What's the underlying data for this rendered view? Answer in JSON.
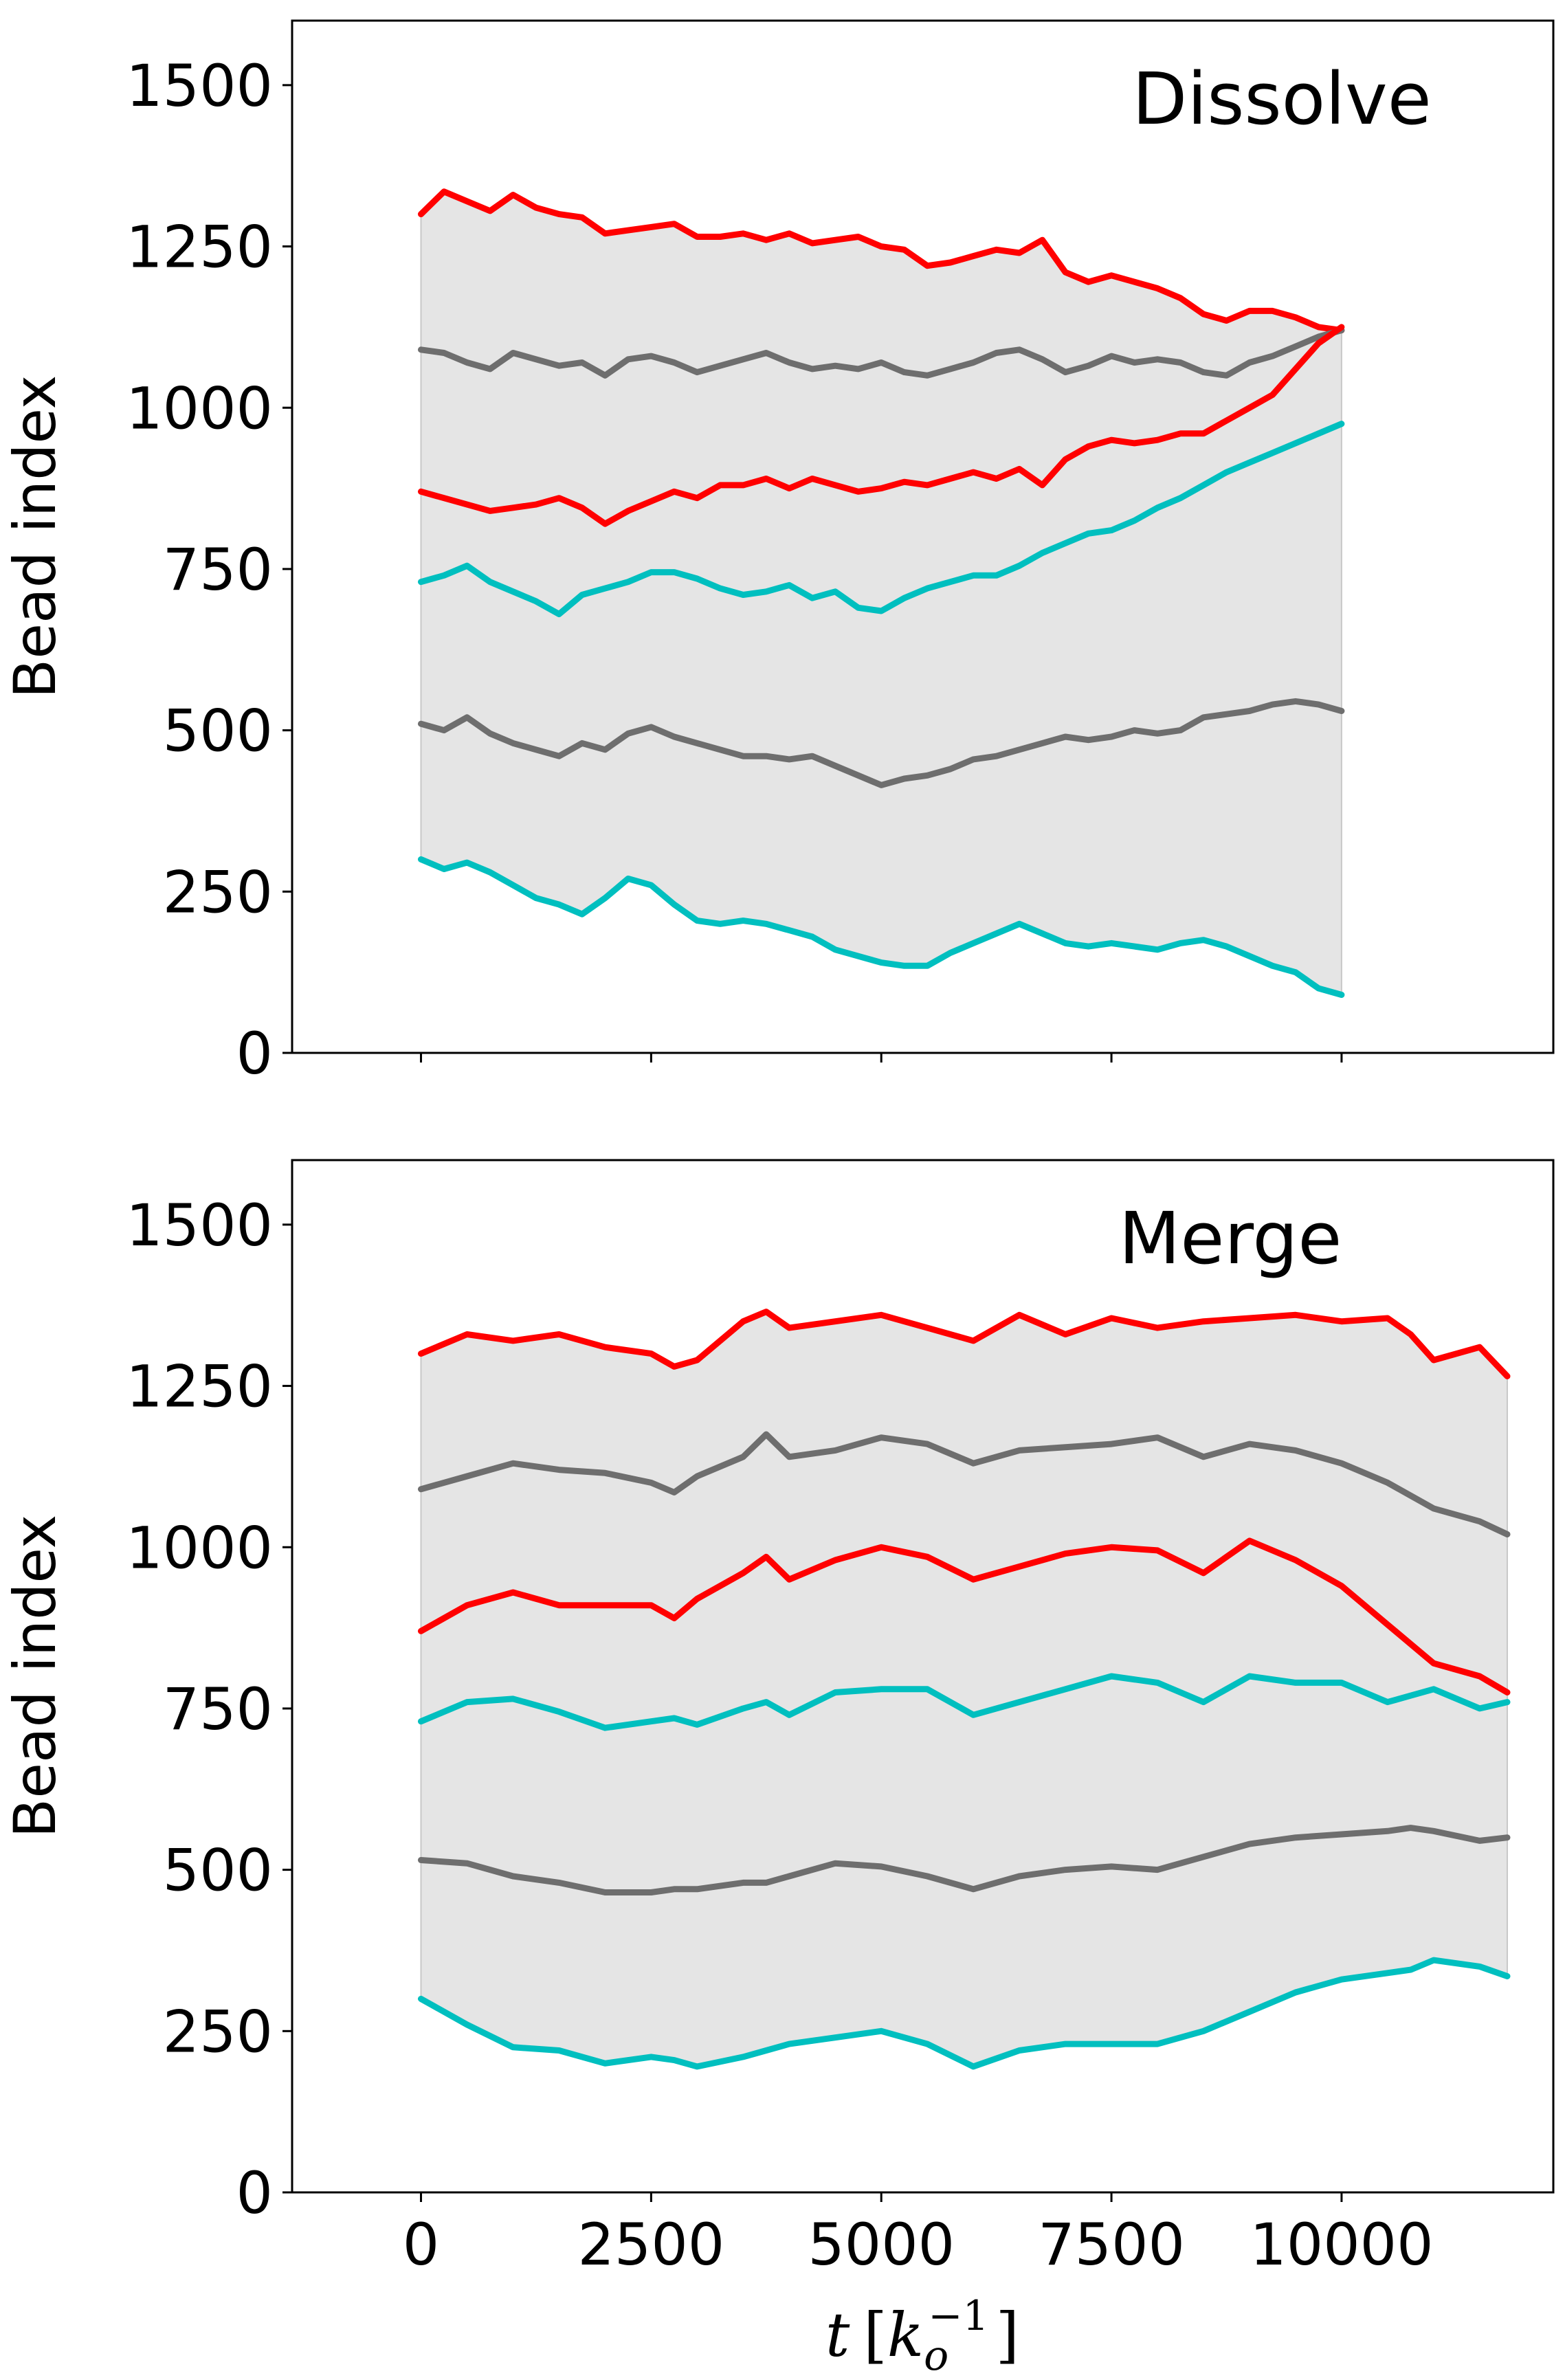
{
  "colors": {
    "red": "#ff0000",
    "gray": "#6e6e6e",
    "cyan": "#00bfbf",
    "fill": "#e5e5e5"
  },
  "chart_data": [
    {
      "type": "line",
      "title": "Dissolve",
      "xlabel": "",
      "ylabel": "Bead index",
      "xlim": [
        -1400,
        12300
      ],
      "ylim": [
        0,
        1600
      ],
      "xticks": [
        0,
        2500,
        5000,
        7500,
        10000
      ],
      "xtick_labels": [
        "",
        "",
        "",
        "",
        ""
      ],
      "yticks": [
        0,
        250,
        500,
        750,
        1000,
        1250,
        1500
      ],
      "ytick_labels": [
        "0",
        "250",
        "500",
        "750",
        "1000",
        "1250",
        "1500"
      ],
      "shaded_region": "between lowest cyan and highest red curve",
      "series": [
        {
          "color": "red",
          "x": [
            0,
            250,
            500,
            750,
            1000,
            1250,
            1500,
            1750,
            2000,
            2250,
            2500,
            2750,
            3000,
            3250,
            3500,
            3750,
            4000,
            4250,
            4500,
            4750,
            5000,
            5250,
            5500,
            5750,
            6000,
            6250,
            6500,
            6750,
            7000,
            7250,
            7500,
            7750,
            8000,
            8250,
            8500,
            8750,
            9000,
            9250,
            9500,
            9750,
            10000
          ],
          "values": [
            1300,
            1335,
            1320,
            1305,
            1330,
            1310,
            1300,
            1295,
            1270,
            1275,
            1280,
            1285,
            1265,
            1265,
            1270,
            1260,
            1270,
            1255,
            1260,
            1265,
            1250,
            1245,
            1220,
            1225,
            1235,
            1245,
            1240,
            1260,
            1210,
            1195,
            1205,
            1195,
            1185,
            1170,
            1145,
            1135,
            1150,
            1150,
            1140,
            1125,
            1120
          ]
        },
        {
          "color": "gray",
          "x": [
            0,
            250,
            500,
            750,
            1000,
            1250,
            1500,
            1750,
            2000,
            2250,
            2500,
            2750,
            3000,
            3250,
            3500,
            3750,
            4000,
            4250,
            4500,
            4750,
            5000,
            5250,
            5500,
            5750,
            6000,
            6250,
            6500,
            6750,
            7000,
            7250,
            7500,
            7750,
            8000,
            8250,
            8500,
            8750,
            9000,
            9250,
            9500,
            9750,
            10000
          ],
          "values": [
            1090,
            1085,
            1070,
            1060,
            1085,
            1075,
            1065,
            1070,
            1050,
            1075,
            1080,
            1070,
            1055,
            1065,
            1075,
            1085,
            1070,
            1060,
            1065,
            1060,
            1070,
            1055,
            1050,
            1060,
            1070,
            1085,
            1090,
            1075,
            1055,
            1065,
            1080,
            1070,
            1075,
            1070,
            1055,
            1050,
            1070,
            1080,
            1095,
            1110,
            1120
          ]
        },
        {
          "color": "red",
          "x": [
            0,
            250,
            500,
            750,
            1000,
            1250,
            1500,
            1750,
            2000,
            2250,
            2500,
            2750,
            3000,
            3250,
            3500,
            3750,
            4000,
            4250,
            4500,
            4750,
            5000,
            5250,
            5500,
            5750,
            6000,
            6250,
            6500,
            6750,
            7000,
            7250,
            7500,
            7750,
            8000,
            8250,
            8500,
            8750,
            9000,
            9250,
            9500,
            9750,
            10000
          ],
          "values": [
            870,
            860,
            850,
            840,
            845,
            850,
            860,
            845,
            820,
            840,
            855,
            870,
            860,
            880,
            880,
            890,
            875,
            890,
            880,
            870,
            875,
            885,
            880,
            890,
            900,
            890,
            905,
            880,
            920,
            940,
            950,
            945,
            950,
            960,
            960,
            980,
            1000,
            1020,
            1060,
            1100,
            1125
          ]
        },
        {
          "color": "cyan",
          "x": [
            0,
            250,
            500,
            750,
            1000,
            1250,
            1500,
            1750,
            2000,
            2250,
            2500,
            2750,
            3000,
            3250,
            3500,
            3750,
            4000,
            4250,
            4500,
            4750,
            5000,
            5250,
            5500,
            5750,
            6000,
            6250,
            6500,
            6750,
            7000,
            7250,
            7500,
            7750,
            8000,
            8250,
            8500,
            8750,
            9000,
            9250,
            9500,
            9750,
            10000
          ],
          "values": [
            730,
            740,
            755,
            730,
            715,
            700,
            680,
            710,
            720,
            730,
            745,
            745,
            735,
            720,
            710,
            715,
            725,
            705,
            715,
            690,
            685,
            705,
            720,
            730,
            740,
            740,
            755,
            775,
            790,
            805,
            810,
            825,
            845,
            860,
            880,
            900,
            915,
            930,
            945,
            960,
            975
          ]
        },
        {
          "color": "gray",
          "x": [
            0,
            250,
            500,
            750,
            1000,
            1250,
            1500,
            1750,
            2000,
            2250,
            2500,
            2750,
            3000,
            3250,
            3500,
            3750,
            4000,
            4250,
            4500,
            4750,
            5000,
            5250,
            5500,
            5750,
            6000,
            6250,
            6500,
            6750,
            7000,
            7250,
            7500,
            7750,
            8000,
            8250,
            8500,
            8750,
            9000,
            9250,
            9500,
            9750,
            10000
          ],
          "values": [
            510,
            500,
            520,
            495,
            480,
            470,
            460,
            480,
            470,
            495,
            505,
            490,
            480,
            470,
            460,
            460,
            455,
            460,
            445,
            430,
            415,
            425,
            430,
            440,
            455,
            460,
            470,
            480,
            490,
            485,
            490,
            500,
            495,
            500,
            520,
            525,
            530,
            540,
            545,
            540,
            530
          ]
        },
        {
          "color": "cyan",
          "x": [
            0,
            250,
            500,
            750,
            1000,
            1250,
            1500,
            1750,
            2000,
            2250,
            2500,
            2750,
            3000,
            3250,
            3500,
            3750,
            4000,
            4250,
            4500,
            4750,
            5000,
            5250,
            5500,
            5750,
            6000,
            6250,
            6500,
            6750,
            7000,
            7250,
            7500,
            7750,
            8000,
            8250,
            8500,
            8750,
            9000,
            9250,
            9500,
            9750,
            10000
          ],
          "values": [
            300,
            285,
            295,
            280,
            260,
            240,
            230,
            215,
            240,
            270,
            260,
            230,
            205,
            200,
            205,
            200,
            190,
            180,
            160,
            150,
            140,
            135,
            135,
            155,
            170,
            185,
            200,
            185,
            170,
            165,
            170,
            165,
            160,
            170,
            175,
            165,
            150,
            135,
            125,
            100,
            90
          ]
        }
      ]
    },
    {
      "type": "line",
      "title": "Merge",
      "xlabel": "t [k_o^-1]",
      "ylabel": "Bead index",
      "xlim": [
        -1400,
        12300
      ],
      "ylim": [
        0,
        1600
      ],
      "xticks": [
        0,
        2500,
        5000,
        7500,
        10000
      ],
      "xtick_labels": [
        "0",
        "2500",
        "5000",
        "7500",
        "10000"
      ],
      "yticks": [
        0,
        250,
        500,
        750,
        1000,
        1250,
        1500
      ],
      "ytick_labels": [
        "0",
        "250",
        "500",
        "750",
        "1000",
        "1250",
        "1500"
      ],
      "shaded_region": "between lowest cyan and highest red curve",
      "series": [
        {
          "color": "red",
          "x": [
            0,
            500,
            1000,
            1500,
            2000,
            2500,
            2750,
            3000,
            3500,
            3750,
            4000,
            4500,
            5000,
            5500,
            6000,
            6500,
            7000,
            7500,
            8000,
            8500,
            9000,
            9500,
            10000,
            10500,
            10750,
            11000,
            11500,
            11800
          ],
          "values": [
            1300,
            1330,
            1320,
            1330,
            1310,
            1300,
            1280,
            1290,
            1350,
            1365,
            1340,
            1350,
            1360,
            1340,
            1320,
            1360,
            1330,
            1355,
            1340,
            1350,
            1355,
            1360,
            1350,
            1355,
            1330,
            1290,
            1310,
            1265
          ]
        },
        {
          "color": "gray",
          "x": [
            0,
            500,
            1000,
            1500,
            2000,
            2500,
            2750,
            3000,
            3500,
            3750,
            4000,
            4500,
            5000,
            5500,
            6000,
            6500,
            7000,
            7500,
            8000,
            8500,
            9000,
            9500,
            10000,
            10500,
            10750,
            11000,
            11500,
            11800
          ],
          "values": [
            1090,
            1110,
            1130,
            1120,
            1115,
            1100,
            1085,
            1110,
            1140,
            1175,
            1140,
            1150,
            1170,
            1160,
            1130,
            1150,
            1155,
            1160,
            1170,
            1140,
            1160,
            1150,
            1130,
            1100,
            1080,
            1060,
            1040,
            1020
          ]
        },
        {
          "color": "red",
          "x": [
            0,
            500,
            1000,
            1500,
            2000,
            2500,
            2750,
            3000,
            3500,
            3750,
            4000,
            4500,
            5000,
            5500,
            6000,
            6500,
            7000,
            7500,
            8000,
            8500,
            9000,
            9500,
            10000,
            10500,
            10750,
            11000,
            11500,
            11800
          ],
          "values": [
            870,
            910,
            930,
            910,
            910,
            910,
            890,
            920,
            960,
            985,
            950,
            980,
            1000,
            985,
            950,
            970,
            990,
            1000,
            995,
            960,
            1010,
            980,
            940,
            880,
            850,
            820,
            800,
            775
          ]
        },
        {
          "color": "cyan",
          "x": [
            0,
            500,
            1000,
            1500,
            2000,
            2500,
            2750,
            3000,
            3500,
            3750,
            4000,
            4500,
            5000,
            5500,
            6000,
            6500,
            7000,
            7500,
            8000,
            8500,
            9000,
            9500,
            10000,
            10500,
            10750,
            11000,
            11500,
            11800
          ],
          "values": [
            730,
            760,
            765,
            745,
            720,
            730,
            735,
            725,
            750,
            760,
            740,
            775,
            780,
            780,
            740,
            760,
            780,
            800,
            790,
            760,
            800,
            790,
            790,
            760,
            770,
            780,
            750,
            760
          ]
        },
        {
          "color": "gray",
          "x": [
            0,
            500,
            1000,
            1500,
            2000,
            2500,
            2750,
            3000,
            3500,
            3750,
            4000,
            4500,
            5000,
            5500,
            6000,
            6500,
            7000,
            7500,
            8000,
            8500,
            9000,
            9500,
            10000,
            10500,
            10750,
            11000,
            11500,
            11800
          ],
          "values": [
            515,
            510,
            490,
            480,
            465,
            465,
            470,
            470,
            480,
            480,
            490,
            510,
            505,
            490,
            470,
            490,
            500,
            505,
            500,
            520,
            540,
            550,
            555,
            560,
            565,
            560,
            545,
            550
          ]
        },
        {
          "color": "cyan",
          "x": [
            0,
            500,
            1000,
            1500,
            2000,
            2500,
            2750,
            3000,
            3500,
            3750,
            4000,
            4500,
            5000,
            5500,
            6000,
            6500,
            7000,
            7500,
            8000,
            8500,
            9000,
            9500,
            10000,
            10500,
            10750,
            11000,
            11500,
            11800
          ],
          "values": [
            300,
            260,
            225,
            220,
            200,
            210,
            205,
            195,
            210,
            220,
            230,
            240,
            250,
            230,
            195,
            220,
            230,
            230,
            230,
            250,
            280,
            310,
            330,
            340,
            345,
            360,
            350,
            335
          ]
        }
      ]
    }
  ]
}
